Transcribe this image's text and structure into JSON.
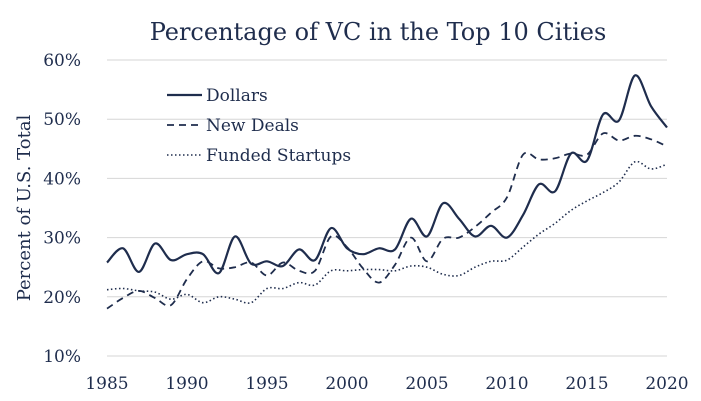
{
  "chart_data": {
    "type": "line",
    "title": "Percentage of VC in the Top 10 Cities",
    "xlabel": "",
    "ylabel": "Percent of U.S. Total",
    "xlim": [
      1985,
      2020
    ],
    "ylim": [
      10,
      60
    ],
    "x_ticks": [
      "1985",
      "1990",
      "1995",
      "2000",
      "2005",
      "2010",
      "2015",
      "2020"
    ],
    "y_ticks": [
      "10%",
      "20%",
      "30%",
      "40%",
      "50%",
      "60%"
    ],
    "grid": "horizontal",
    "legend": "top-left",
    "x": [
      1985,
      1986,
      1987,
      1988,
      1989,
      1990,
      1991,
      1992,
      1993,
      1994,
      1995,
      1996,
      1997,
      1998,
      1999,
      2000,
      2001,
      2002,
      2003,
      2004,
      2005,
      2006,
      2007,
      2008,
      2009,
      2010,
      2011,
      2012,
      2013,
      2014,
      2015,
      2016,
      2017,
      2018,
      2019,
      2020
    ],
    "series": [
      {
        "name": "Dollars",
        "style": "solid",
        "values": [
          25.8,
          28.2,
          24.2,
          29.0,
          26.2,
          27.2,
          27.2,
          24.0,
          30.2,
          25.6,
          26.0,
          25.2,
          28.0,
          26.2,
          31.6,
          28.2,
          27.2,
          28.2,
          28.0,
          33.2,
          30.2,
          35.8,
          33.2,
          30.2,
          32.0,
          30.0,
          33.8,
          39.0,
          37.8,
          44.2,
          43.0,
          50.8,
          49.8,
          57.4,
          52.2,
          48.6
        ]
      },
      {
        "name": "New Deals",
        "style": "dashed",
        "values": [
          18.0,
          19.8,
          21.0,
          19.8,
          18.6,
          23.0,
          26.0,
          24.8,
          25.0,
          25.8,
          23.6,
          25.8,
          24.4,
          24.4,
          30.2,
          28.4,
          24.8,
          22.4,
          25.4,
          30.0,
          26.0,
          29.8,
          30.0,
          31.8,
          34.2,
          36.8,
          44.0,
          43.2,
          43.4,
          44.2,
          44.0,
          47.6,
          46.4,
          47.2,
          46.6,
          45.4
        ]
      },
      {
        "name": "Funded Startups",
        "style": "dotted",
        "values": [
          21.2,
          21.4,
          21.0,
          20.8,
          19.6,
          20.4,
          19.0,
          20.0,
          19.6,
          19.0,
          21.4,
          21.4,
          22.4,
          22.0,
          24.4,
          24.4,
          24.6,
          24.6,
          24.4,
          25.2,
          25.0,
          23.8,
          23.6,
          25.0,
          26.0,
          26.2,
          28.4,
          30.6,
          32.4,
          34.6,
          36.2,
          37.6,
          39.4,
          42.8,
          41.6,
          42.4
        ]
      }
    ]
  }
}
